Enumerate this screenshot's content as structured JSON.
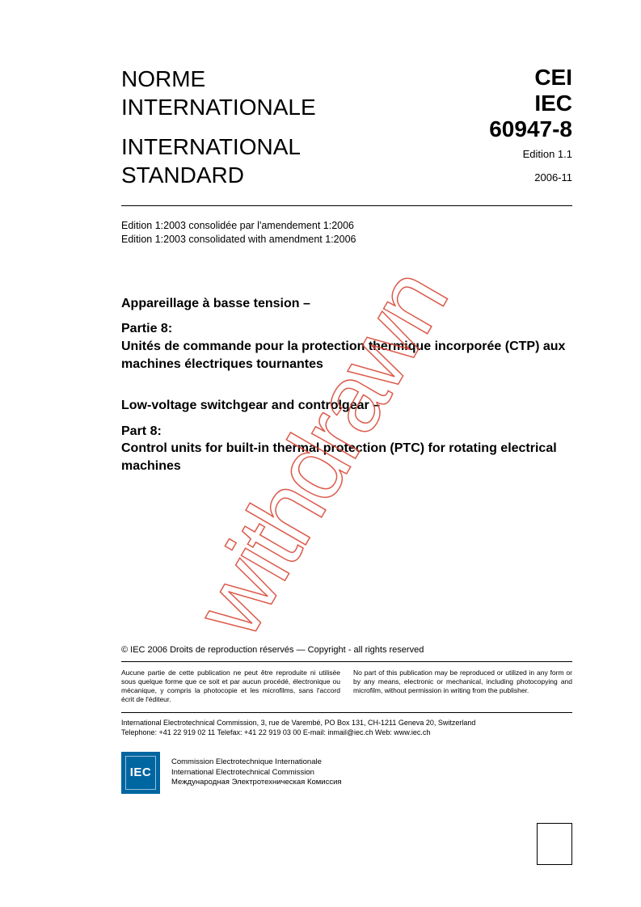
{
  "header": {
    "left_line1": "NORME",
    "left_line2": "INTERNATIONALE",
    "left_line3": "INTERNATIONAL",
    "left_line4": "STANDARD",
    "org1": "CEI",
    "org2": "IEC",
    "standard_number": "60947-8",
    "edition": "Edition 1.1",
    "date": "2006-11"
  },
  "consolidation": {
    "line1": "Edition 1:2003 consolidée par l'amendement 1:2006",
    "line2": "Edition 1:2003 consolidated with amendment 1:2006"
  },
  "title_fr": {
    "main": "Appareillage à basse tension –",
    "part_label": "Partie 8:",
    "part_text": "Unités de commande pour la protection thermique incorporée (CTP) aux machines électriques tournantes"
  },
  "title_en": {
    "main": "Low-voltage switchgear and controlgear –",
    "part_label": "Part 8:",
    "part_text": "Control units for built-in thermal protection (PTC) for rotating electrical machines"
  },
  "watermark": "withdrawn",
  "copyright": "© IEC 2006  Droits de reproduction réservés  —  Copyright - all rights reserved",
  "legal_fr": "Aucune partie de cette publication ne peut être reproduite ni utilisée sous quelque forme que ce soit et par aucun procédé, électronique ou mécanique, y compris la photocopie et les microfilms, sans l'accord écrit de l'éditeur.",
  "legal_en": "No part of this publication may be reproduced or utilized in any form or by any means, electronic or mechanical, including photocopying and microfilm, without permission in writing from the publisher.",
  "address": {
    "line1": "International Electrotechnical Commission,  3, rue de Varembé, PO Box 131, CH-1211 Geneva 20, Switzerland",
    "line2": "Telephone: +41 22 919 02 11   Telefax: +41 22 919 03 00   E-mail: inmail@iec.ch   Web: www.iec.ch"
  },
  "logo_text": "IEC",
  "commission": {
    "line1": "Commission Electrotechnique Internationale",
    "line2": "International Electrotechnical Commission",
    "line3": "Международная Электротехническая Комиссия"
  },
  "colors": {
    "logo_bg": "#0066a1",
    "watermark": "#d94a3a"
  }
}
